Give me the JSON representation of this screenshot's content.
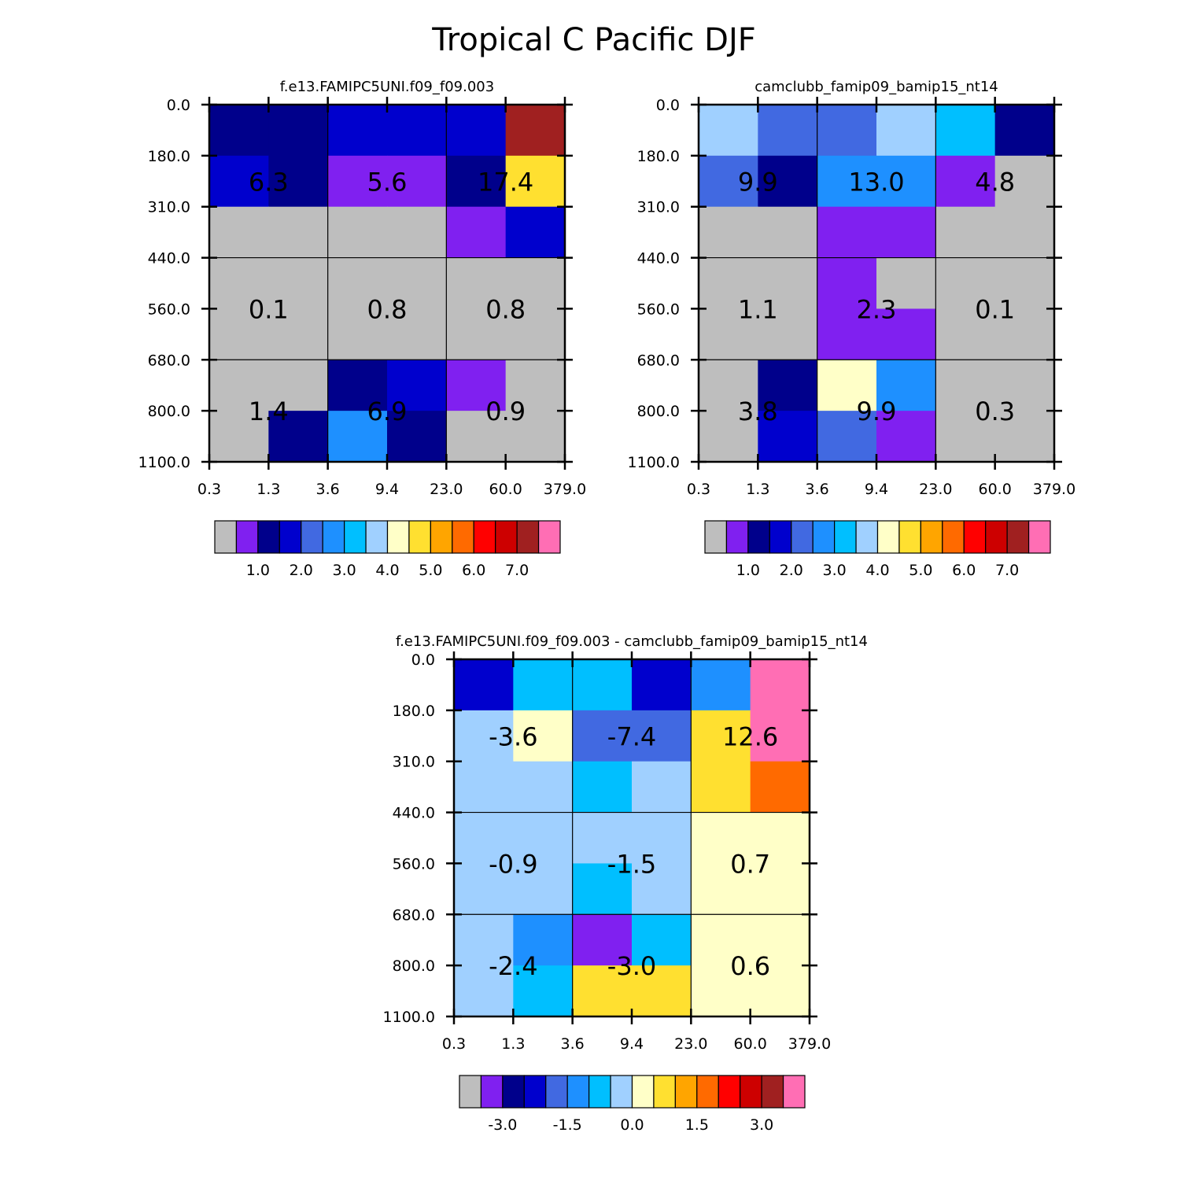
{
  "chart_data": {
    "type": "heatmap",
    "title": "Tropical C Pacific DJF",
    "x_ticks": [
      "0.3",
      "1.3",
      "3.6",
      "9.4",
      "23.0",
      "60.0",
      "379.0"
    ],
    "y_ticks": [
      "0.0",
      "180.0",
      "310.0",
      "440.0",
      "560.0",
      "680.0",
      "800.0",
      "1100.0"
    ],
    "panels": [
      {
        "title": "f.e13.FAMIPC5UNI.f09_f09.003",
        "colorbar": {
          "colors": [
            "#bebebe",
            "#8020f0",
            "#00008b",
            "#0000cd",
            "#4169e1",
            "#1e90ff",
            "#00bfff",
            "#a0d0ff",
            "#ffffc8",
            "#ffe030",
            "#ffa500",
            "#ff6a00",
            "#ff0000",
            "#cd0000",
            "#a02020",
            "#ff6eb4"
          ],
          "labels": [
            "1.0",
            "2.0",
            "3.0",
            "4.0",
            "5.0",
            "6.0",
            "7.0"
          ]
        },
        "cell_colors": [
          [
            "#00008b",
            "#00008b",
            "#0000cd",
            "#0000cd",
            "#0000cd",
            "#a02020"
          ],
          [
            "#0000cd",
            "#00008b",
            "#8020f0",
            "#8020f0",
            "#00008b",
            "#ffe030"
          ],
          [
            "#bebebe",
            "#bebebe",
            "#bebebe",
            "#bebebe",
            "#8020f0",
            "#0000cd"
          ],
          [
            "#bebebe",
            "#bebebe",
            "#bebebe",
            "#bebebe",
            "#bebebe",
            "#bebebe"
          ],
          [
            "#bebebe",
            "#bebebe",
            "#bebebe",
            "#bebebe",
            "#bebebe",
            "#bebebe"
          ],
          [
            "#bebebe",
            "#bebebe",
            "#00008b",
            "#0000cd",
            "#8020f0",
            "#bebebe"
          ],
          [
            "#bebebe",
            "#00008b",
            "#1e90ff",
            "#00008b",
            "#bebebe",
            "#bebebe"
          ]
        ],
        "block_totals": [
          [
            "6.3",
            "5.6",
            "17.4"
          ],
          [
            "0.1",
            "0.8",
            "0.8"
          ],
          [
            "1.4",
            "6.9",
            "0.9"
          ]
        ]
      },
      {
        "title": "camclubb_famip09_bamip15_nt14",
        "colorbar": {
          "colors": [
            "#bebebe",
            "#8020f0",
            "#00008b",
            "#0000cd",
            "#4169e1",
            "#1e90ff",
            "#00bfff",
            "#a0d0ff",
            "#ffffc8",
            "#ffe030",
            "#ffa500",
            "#ff6a00",
            "#ff0000",
            "#cd0000",
            "#a02020",
            "#ff6eb4"
          ],
          "labels": [
            "1.0",
            "2.0",
            "3.0",
            "4.0",
            "5.0",
            "6.0",
            "7.0"
          ]
        },
        "cell_colors": [
          [
            "#a0d0ff",
            "#4169e1",
            "#4169e1",
            "#a0d0ff",
            "#00bfff",
            "#00008b"
          ],
          [
            "#4169e1",
            "#00008b",
            "#1e90ff",
            "#1e90ff",
            "#8020f0",
            "#bebebe"
          ],
          [
            "#bebebe",
            "#bebebe",
            "#8020f0",
            "#8020f0",
            "#bebebe",
            "#bebebe"
          ],
          [
            "#bebebe",
            "#bebebe",
            "#8020f0",
            "#bebebe",
            "#bebebe",
            "#bebebe"
          ],
          [
            "#bebebe",
            "#bebebe",
            "#8020f0",
            "#8020f0",
            "#bebebe",
            "#bebebe"
          ],
          [
            "#bebebe",
            "#00008b",
            "#ffffc8",
            "#1e90ff",
            "#bebebe",
            "#bebebe"
          ],
          [
            "#bebebe",
            "#0000cd",
            "#4169e1",
            "#8020f0",
            "#bebebe",
            "#bebebe"
          ]
        ],
        "block_totals": [
          [
            "9.9",
            "13.0",
            "4.8"
          ],
          [
            "1.1",
            "2.3",
            "0.1"
          ],
          [
            "3.8",
            "9.9",
            "0.3"
          ]
        ]
      },
      {
        "title": "f.e13.FAMIPC5UNI.f09_f09.003 - camclubb_famip09_bamip15_nt14",
        "colorbar": {
          "colors": [
            "#bebebe",
            "#8020f0",
            "#00008b",
            "#0000cd",
            "#4169e1",
            "#1e90ff",
            "#00bfff",
            "#a0d0ff",
            "#ffffc8",
            "#ffe030",
            "#ffa500",
            "#ff6a00",
            "#ff0000",
            "#cd0000",
            "#a02020",
            "#ff6eb4"
          ],
          "labels": [
            "-3.0",
            "-1.5",
            "0.0",
            "1.5",
            "3.0"
          ]
        },
        "cell_colors": [
          [
            "#0000cd",
            "#00bfff",
            "#00bfff",
            "#0000cd",
            "#1e90ff",
            "#ff6eb4"
          ],
          [
            "#a0d0ff",
            "#ffffc8",
            "#4169e1",
            "#4169e1",
            "#ffe030",
            "#ff6eb4"
          ],
          [
            "#a0d0ff",
            "#a0d0ff",
            "#00bfff",
            "#a0d0ff",
            "#ffe030",
            "#ff6a00"
          ],
          [
            "#a0d0ff",
            "#a0d0ff",
            "#a0d0ff",
            "#a0d0ff",
            "#ffffc8",
            "#ffffc8"
          ],
          [
            "#a0d0ff",
            "#a0d0ff",
            "#00bfff",
            "#a0d0ff",
            "#ffffc8",
            "#ffffc8"
          ],
          [
            "#a0d0ff",
            "#1e90ff",
            "#8020f0",
            "#00bfff",
            "#ffffc8",
            "#ffffc8"
          ],
          [
            "#a0d0ff",
            "#00bfff",
            "#ffe030",
            "#ffe030",
            "#ffffc8",
            "#ffffc8"
          ]
        ],
        "block_totals": [
          [
            "-3.6",
            "-7.4",
            "12.6"
          ],
          [
            "-0.9",
            "-1.5",
            "0.7"
          ],
          [
            "-2.4",
            "-3.0",
            "0.6"
          ]
        ]
      }
    ]
  }
}
